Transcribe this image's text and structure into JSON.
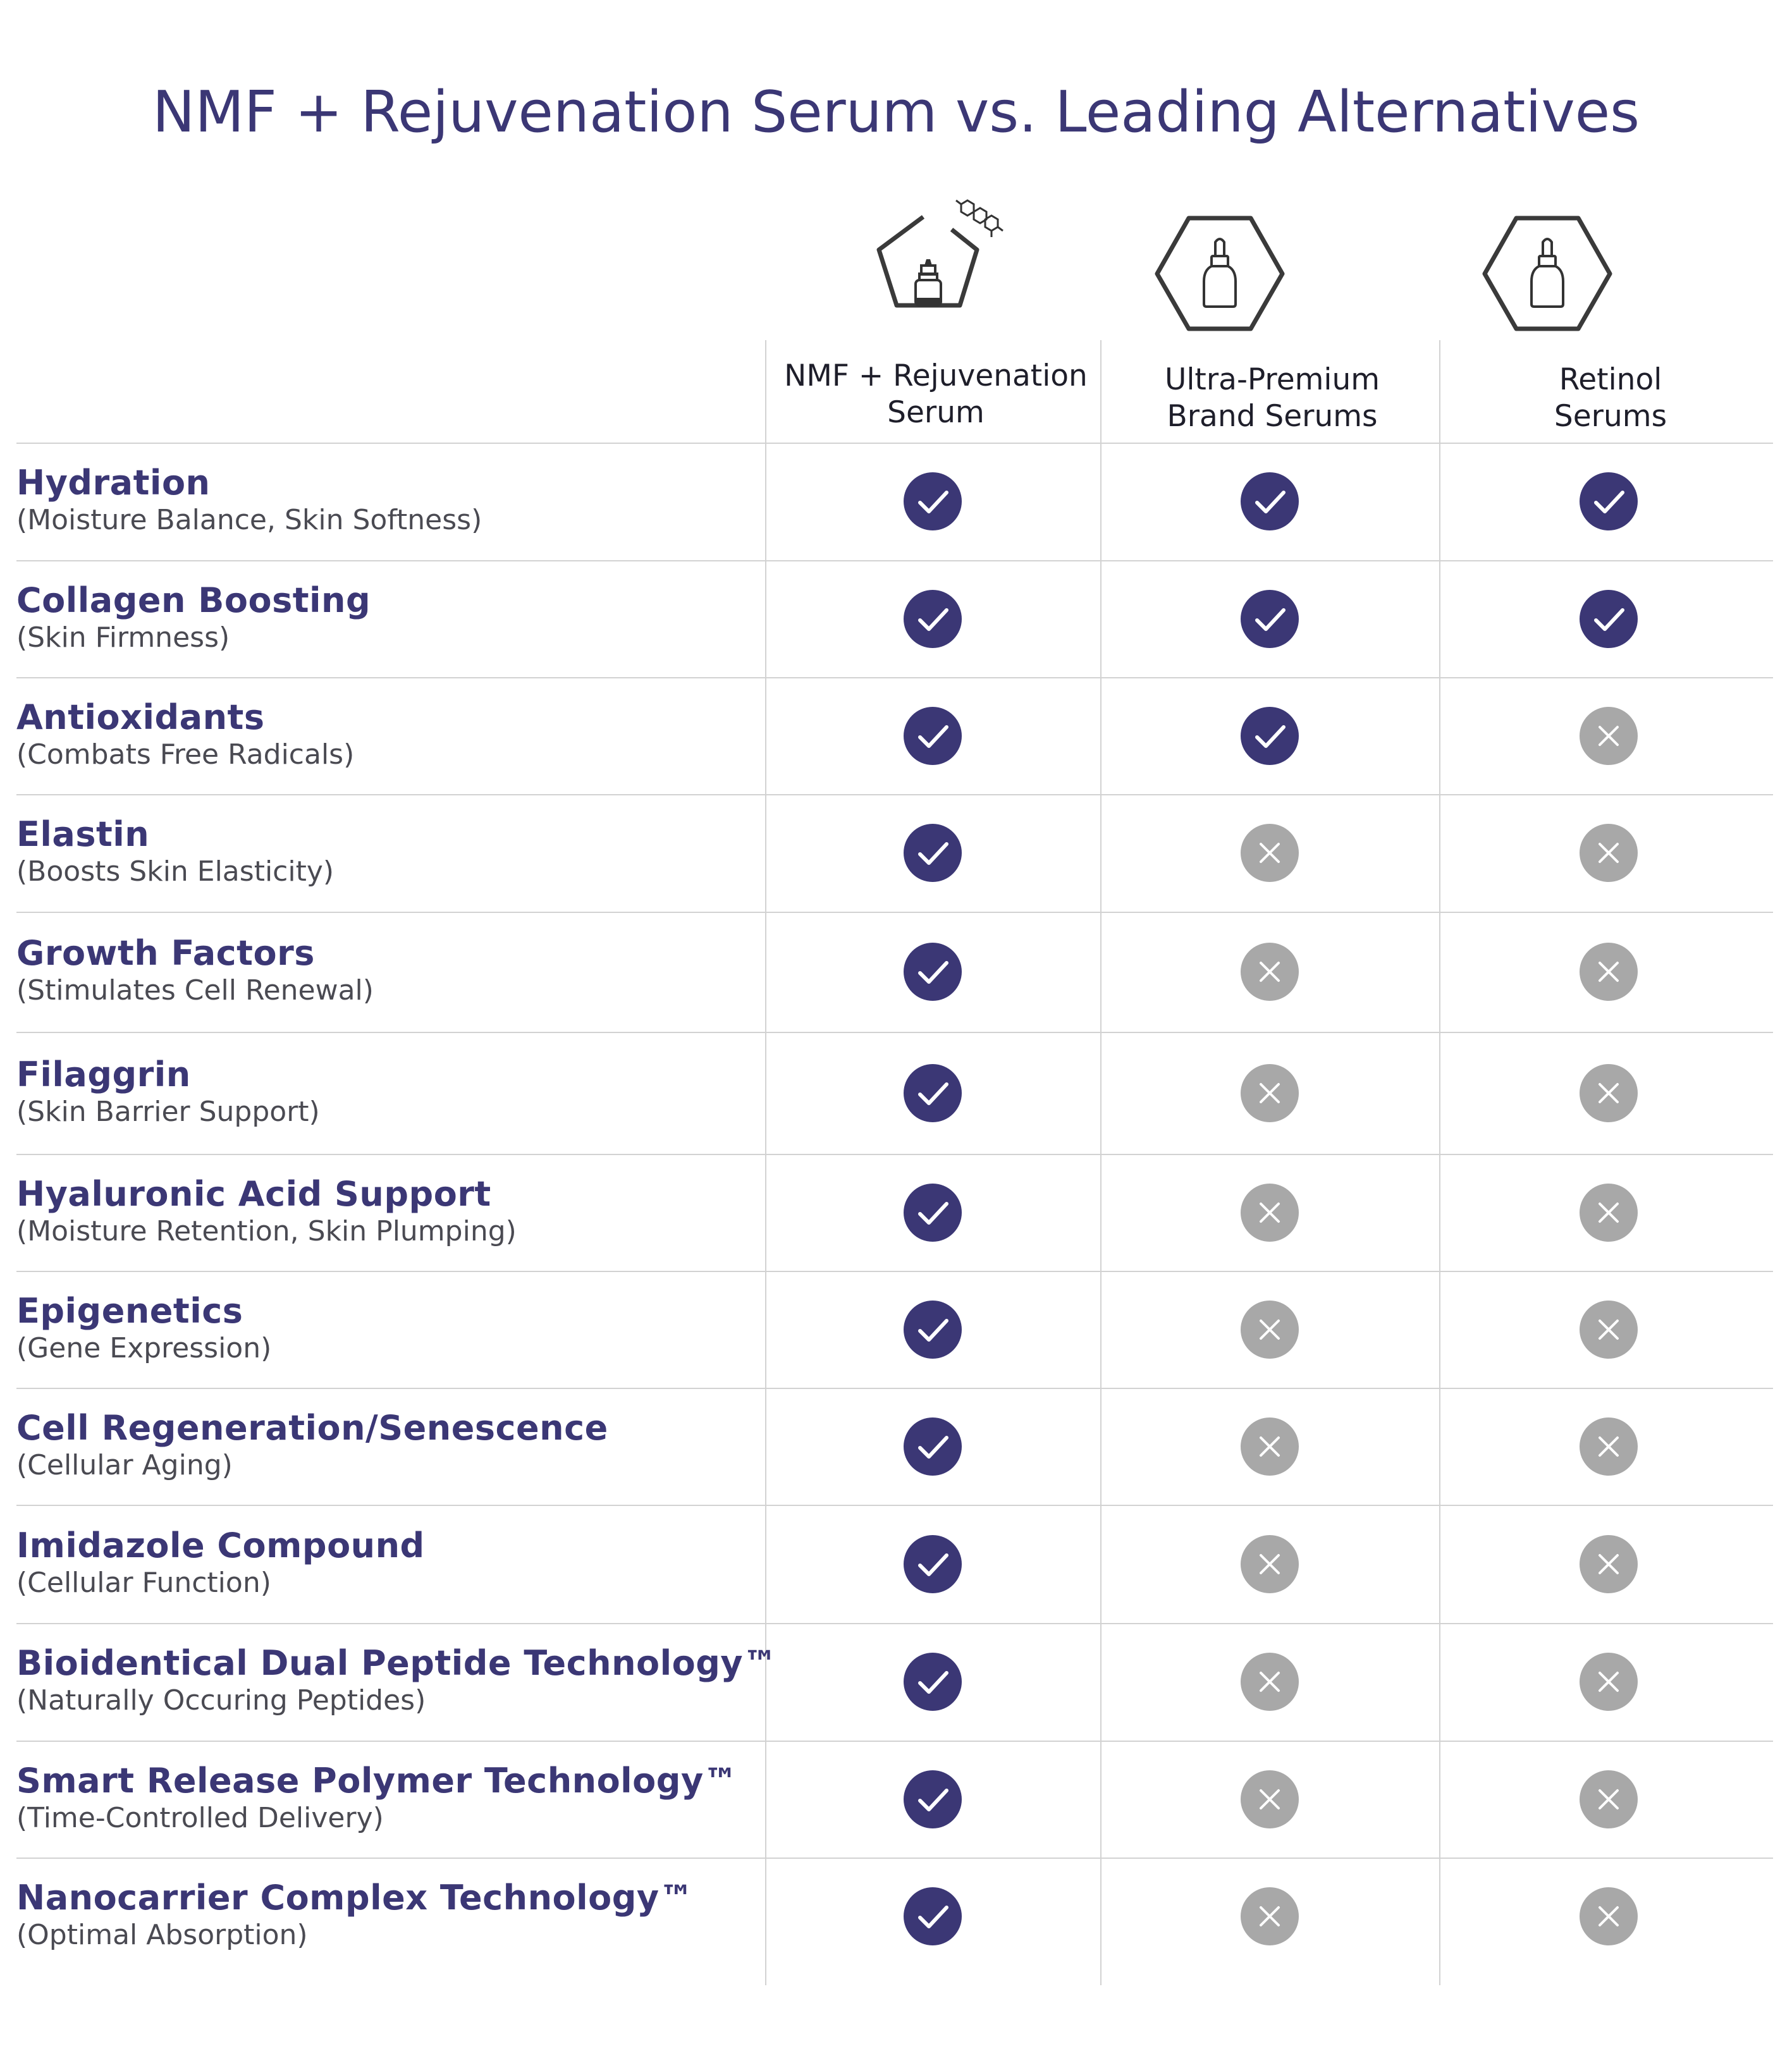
{
  "title": "NMF + Rejuvenation Serum vs. Leading Alternatives",
  "colors": {
    "brand": "#3b3775",
    "yes": "#3b3775",
    "no": "#a8a8a8",
    "grid": "#d2d2d2"
  },
  "columns": [
    {
      "line1": "NMF + Rejuvenation",
      "line2": "Serum",
      "icon": "serum-bottle-pentagon-molecule-icon"
    },
    {
      "line1": "Ultra-Premium",
      "line2": "Brand Serums",
      "icon": "dropper-bottle-hexagon-icon"
    },
    {
      "line1": "Retinol",
      "line2": "Serums",
      "icon": "dropper-bottle-hexagon-icon"
    }
  ],
  "rows": [
    {
      "name": "Hydration",
      "sub": "(Moisture Balance, Skin Softness)",
      "values": [
        true,
        true,
        true
      ]
    },
    {
      "name": "Collagen Boosting",
      "sub": "(Skin Firmness)",
      "values": [
        true,
        true,
        true
      ]
    },
    {
      "name": "Antioxidants",
      "sub": "(Combats Free Radicals)",
      "values": [
        true,
        true,
        false
      ]
    },
    {
      "name": "Elastin",
      "sub": "(Boosts Skin Elasticity)",
      "values": [
        true,
        false,
        false
      ]
    },
    {
      "name": "Growth Factors",
      "sub": "(Stimulates Cell Renewal)",
      "values": [
        true,
        false,
        false
      ]
    },
    {
      "name": "Filaggrin",
      "sub": "(Skin Barrier Support)",
      "values": [
        true,
        false,
        false
      ]
    },
    {
      "name": "Hyaluronic Acid Support",
      "sub": "(Moisture Retention, Skin Plumping)",
      "values": [
        true,
        false,
        false
      ]
    },
    {
      "name": "Epigenetics",
      "sub": "(Gene Expression)",
      "values": [
        true,
        false,
        false
      ]
    },
    {
      "name": "Cell Regeneration/Senescence",
      "sub": "(Cellular Aging)",
      "values": [
        true,
        false,
        false
      ]
    },
    {
      "name": "Imidazole Compound",
      "sub": "(Cellular Function)",
      "values": [
        true,
        false,
        false
      ]
    },
    {
      "name": "Bioidentical Dual Peptide Technology™",
      "sub": "(Naturally Occuring  Peptides)",
      "values": [
        true,
        false,
        false
      ]
    },
    {
      "name": "Smart Release Polymer Technology™",
      "sub": "(Time-Controlled Delivery)",
      "values": [
        true,
        false,
        false
      ]
    },
    {
      "name": "Nanocarrier Complex Technology™",
      "sub": "(Optimal Absorption)",
      "values": [
        true,
        false,
        false
      ]
    }
  ]
}
